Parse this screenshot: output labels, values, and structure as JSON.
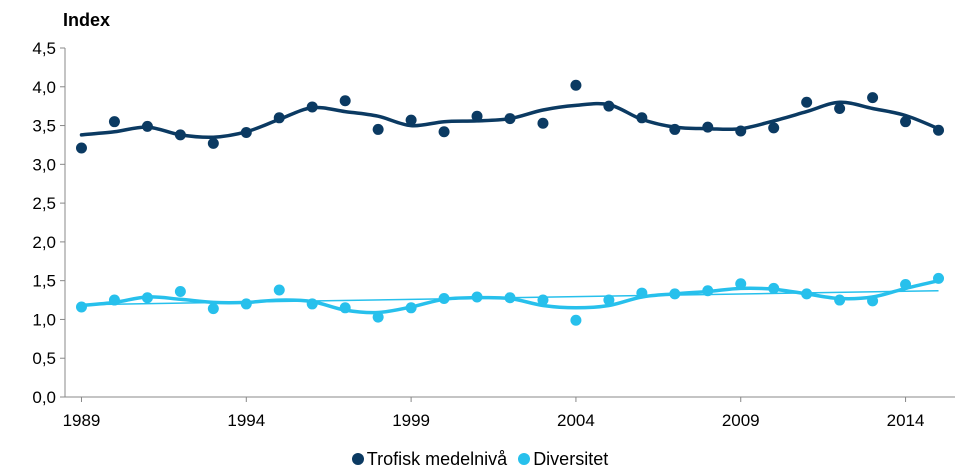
{
  "chart_data": {
    "type": "scatter",
    "ylabel": "Index",
    "x": [
      1989,
      1990,
      1991,
      1992,
      1993,
      1994,
      1995,
      1996,
      1997,
      1998,
      1999,
      2000,
      2001,
      2002,
      2003,
      2004,
      2005,
      2006,
      2007,
      2008,
      2009,
      2010,
      2011,
      2012,
      2013,
      2014,
      2015
    ],
    "xticks": [
      1989,
      1994,
      1999,
      2004,
      2009,
      2014
    ],
    "xtick_labels": [
      "1989",
      "1994",
      "1999",
      "2004",
      "2009",
      "2014"
    ],
    "ylim": [
      0,
      4.5
    ],
    "yticks": [
      0,
      0.5,
      1,
      1.5,
      2,
      2.5,
      3,
      3.5,
      4,
      4.5
    ],
    "ytick_labels": [
      "0,0",
      "0,5",
      "1,0",
      "1,5",
      "2,0",
      "2,5",
      "3,0",
      "3,5",
      "4,0",
      "4,5"
    ],
    "grid": false,
    "legend_position": "bottom",
    "series": [
      {
        "name": "Trofisk medelnivå",
        "color": "#0b3a62",
        "values": [
          3.21,
          3.55,
          3.49,
          3.38,
          3.27,
          3.41,
          3.6,
          3.74,
          3.82,
          3.45,
          3.57,
          3.42,
          3.62,
          3.59,
          3.53,
          4.02,
          3.75,
          3.6,
          3.45,
          3.48,
          3.43,
          3.47,
          3.8,
          3.72,
          3.86,
          3.55,
          3.44
        ],
        "smoothed": [
          3.38,
          3.42,
          3.48,
          3.38,
          3.35,
          3.42,
          3.58,
          3.73,
          3.68,
          3.62,
          3.5,
          3.55,
          3.56,
          3.59,
          3.7,
          3.76,
          3.77,
          3.58,
          3.48,
          3.46,
          3.46,
          3.56,
          3.68,
          3.8,
          3.72,
          3.63,
          3.46
        ]
      },
      {
        "name": "Diversitet",
        "color": "#27c0ec",
        "values": [
          1.16,
          1.25,
          1.28,
          1.36,
          1.14,
          1.2,
          1.38,
          1.2,
          1.15,
          1.03,
          1.15,
          1.27,
          1.29,
          1.28,
          1.25,
          0.99,
          1.25,
          1.34,
          1.33,
          1.37,
          1.46,
          1.4,
          1.33,
          1.25,
          1.24,
          1.45,
          1.53
        ],
        "smoothed": [
          1.18,
          1.22,
          1.29,
          1.26,
          1.22,
          1.22,
          1.25,
          1.23,
          1.12,
          1.09,
          1.16,
          1.26,
          1.28,
          1.27,
          1.18,
          1.15,
          1.18,
          1.29,
          1.33,
          1.36,
          1.4,
          1.39,
          1.33,
          1.27,
          1.29,
          1.4,
          1.5
        ],
        "trend": [
          1.19,
          1.37
        ]
      }
    ]
  }
}
